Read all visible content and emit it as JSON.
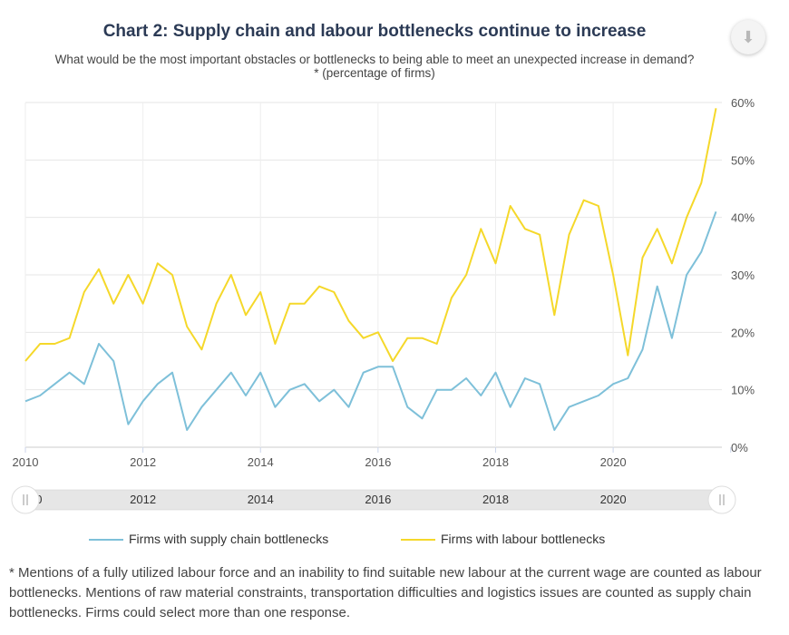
{
  "header": {
    "title": "Chart 2: Supply chain and labour bottlenecks continue to increase",
    "subtitle": "What would be the most important obstacles or bottlenecks to being able to meet an unexpected increase in demand?* (percentage of firms)",
    "download_icon": "download-icon"
  },
  "chart_data": {
    "type": "line",
    "title": "Chart 2: Supply chain and labour bottlenecks continue to increase",
    "subtitle": "What would be the most important obstacles or bottlenecks to being able to meet an unexpected increase in demand?* (percentage of firms)",
    "x_ticks": [
      "2010",
      "2012",
      "2014",
      "2016",
      "2018",
      "2020"
    ],
    "y_ticks": [
      "0%",
      "10%",
      "20%",
      "30%",
      "40%",
      "50%",
      "60%"
    ],
    "ylim": [
      0,
      60
    ],
    "y_axis_position": "right",
    "grid": true,
    "legend_position": "bottom",
    "x": [
      2010.0,
      2010.25,
      2010.5,
      2010.75,
      2011.0,
      2011.25,
      2011.5,
      2011.75,
      2012.0,
      2012.25,
      2012.5,
      2012.75,
      2013.0,
      2013.25,
      2013.5,
      2013.75,
      2014.0,
      2014.25,
      2014.5,
      2014.75,
      2015.0,
      2015.25,
      2015.5,
      2015.75,
      2016.0,
      2016.25,
      2016.5,
      2016.75,
      2017.0,
      2017.25,
      2017.5,
      2017.75,
      2018.0,
      2018.25,
      2018.5,
      2018.75,
      2019.0,
      2019.25,
      2019.5,
      2019.75,
      2020.0,
      2020.25,
      2020.5,
      2020.75,
      2021.0,
      2021.25,
      2021.5,
      2021.75
    ],
    "series": [
      {
        "name": "Firms with supply chain bottlenecks",
        "color": "#7ec0d9",
        "values": [
          8,
          9,
          11,
          13,
          11,
          18,
          15,
          4,
          8,
          11,
          13,
          3,
          7,
          10,
          13,
          9,
          13,
          7,
          10,
          11,
          8,
          10,
          7,
          13,
          14,
          14,
          7,
          5,
          10,
          10,
          12,
          9,
          13,
          7,
          12,
          11,
          3,
          7,
          8,
          9,
          11,
          12,
          17,
          28,
          19,
          30,
          34,
          41
        ]
      },
      {
        "name": "Firms with labour bottlenecks",
        "color": "#f5d82a",
        "values": [
          15,
          18,
          18,
          19,
          27,
          31,
          25,
          30,
          25,
          32,
          30,
          21,
          17,
          25,
          30,
          23,
          27,
          18,
          25,
          25,
          28,
          27,
          22,
          19,
          20,
          15,
          19,
          19,
          18,
          26,
          30,
          38,
          32,
          42,
          38,
          37,
          23,
          37,
          43,
          42,
          30,
          16,
          33,
          38,
          32,
          40,
          46,
          59
        ]
      }
    ]
  },
  "navigator": {
    "labels": [
      "2010",
      "2012",
      "2014",
      "2016",
      "2018",
      "2020"
    ],
    "left_handle_icon": "grip-icon",
    "right_handle_icon": "grip-icon"
  },
  "legend": {
    "items": [
      {
        "label": "Firms with supply chain bottlenecks",
        "color": "#7ec0d9"
      },
      {
        "label": "Firms with labour bottlenecks",
        "color": "#f5d82a"
      }
    ]
  },
  "footnote": "* Mentions of a fully utilized labour force and an inability to find suitable new labour at the current wage are counted as labour bottlenecks. Mentions of raw material constraints, transportation difficulties and logistics issues are counted as supply chain bottlenecks. Firms could select more than one response."
}
